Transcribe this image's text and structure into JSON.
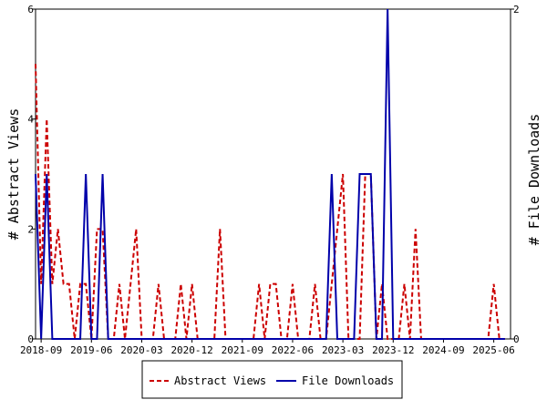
{
  "chart_data": {
    "type": "line",
    "left_axis_label": "# Abstract Views",
    "right_axis_label": "# File Downloads",
    "left_ylim": [
      0,
      6
    ],
    "right_ylim": [
      0,
      2
    ],
    "left_yticks": [
      "0",
      "2",
      "4",
      "6"
    ],
    "right_yticks": [
      "0",
      "2"
    ],
    "xlim": [
      "2018-08",
      "2025-09"
    ],
    "xticks": [
      "2018-09",
      "2019-06",
      "2020-03",
      "2020-12",
      "2021-09",
      "2022-06",
      "2023-03",
      "2023-12",
      "2024-09",
      "2025-06"
    ],
    "grid": false,
    "legend_position": "bottom",
    "colors": {
      "abstract_views": "#cc0000",
      "file_downloads": "#0000aa"
    },
    "series": [
      {
        "name": "Abstract Views",
        "axis": "left",
        "style": "dashed",
        "x": [
          "2018-08",
          "2018-09",
          "2018-10",
          "2018-11",
          "2018-12",
          "2019-01",
          "2019-02",
          "2019-03",
          "2019-04",
          "2019-05",
          "2019-06",
          "2019-07",
          "2019-08",
          "2019-09",
          "2019-10",
          "2019-11",
          "2019-12",
          "2020-01",
          "2020-02",
          "2020-03",
          "2020-04",
          "2020-05",
          "2020-06",
          "2020-07",
          "2020-08",
          "2020-09",
          "2020-10",
          "2020-11",
          "2020-12",
          "2021-01",
          "2021-02",
          "2021-03",
          "2021-04",
          "2021-05",
          "2021-06",
          "2021-07",
          "2021-08",
          "2021-09",
          "2021-10",
          "2021-11",
          "2021-12",
          "2022-01",
          "2022-02",
          "2022-03",
          "2022-04",
          "2022-05",
          "2022-06",
          "2022-07",
          "2022-08",
          "2022-09",
          "2022-10",
          "2022-11",
          "2022-12",
          "2023-01",
          "2023-02",
          "2023-03",
          "2023-04",
          "2023-05",
          "2023-06",
          "2023-07",
          "2023-08",
          "2023-09",
          "2023-10",
          "2023-11",
          "2023-12",
          "2024-01",
          "2024-02",
          "2024-03",
          "2024-04",
          "2024-05",
          "2024-06",
          "2024-07",
          "2024-08",
          "2024-09",
          "2024-10",
          "2024-11",
          "2024-12",
          "2025-01",
          "2025-02",
          "2025-03",
          "2025-04",
          "2025-05",
          "2025-06",
          "2025-07",
          "2025-08"
        ],
        "values": [
          5,
          1,
          4,
          1,
          2,
          1,
          1,
          0,
          1,
          1,
          0,
          2,
          2,
          0,
          0,
          1,
          0,
          1,
          2,
          0,
          0,
          0,
          1,
          0,
          0,
          0,
          1,
          0,
          1,
          0,
          0,
          0,
          0,
          2,
          0,
          0,
          0,
          0,
          0,
          0,
          1,
          0,
          1,
          1,
          0,
          0,
          1,
          0,
          0,
          0,
          1,
          0,
          0,
          1,
          2,
          3,
          0,
          0,
          0,
          3,
          3,
          0,
          1,
          0,
          0,
          0,
          1,
          0,
          2,
          0,
          0,
          0,
          0,
          0,
          0,
          0,
          0,
          0,
          0,
          0,
          0,
          0,
          1,
          0,
          0
        ]
      },
      {
        "name": "File Downloads",
        "axis": "right",
        "style": "solid",
        "x": [
          "2018-08",
          "2018-09",
          "2018-10",
          "2018-11",
          "2018-12",
          "2019-01",
          "2019-02",
          "2019-03",
          "2019-04",
          "2019-05",
          "2019-06",
          "2019-07",
          "2019-08",
          "2019-09",
          "2019-10",
          "2019-11",
          "2019-12",
          "2020-01",
          "2020-02",
          "2020-03",
          "2020-04",
          "2020-05",
          "2020-06",
          "2020-07",
          "2020-08",
          "2020-09",
          "2020-10",
          "2020-11",
          "2020-12",
          "2021-01",
          "2021-02",
          "2021-03",
          "2021-04",
          "2021-05",
          "2021-06",
          "2021-07",
          "2021-08",
          "2021-09",
          "2021-10",
          "2021-11",
          "2021-12",
          "2022-01",
          "2022-02",
          "2022-03",
          "2022-04",
          "2022-05",
          "2022-06",
          "2022-07",
          "2022-08",
          "2022-09",
          "2022-10",
          "2022-11",
          "2022-12",
          "2023-01",
          "2023-02",
          "2023-03",
          "2023-04",
          "2023-05",
          "2023-06",
          "2023-07",
          "2023-08",
          "2023-09",
          "2023-10",
          "2023-11",
          "2023-12",
          "2024-01",
          "2024-02",
          "2024-03",
          "2024-04",
          "2024-05",
          "2024-06",
          "2024-07",
          "2024-08",
          "2024-09",
          "2024-10",
          "2024-11",
          "2024-12",
          "2025-01",
          "2025-02",
          "2025-03",
          "2025-04",
          "2025-05",
          "2025-06",
          "2025-07",
          "2025-08"
        ],
        "values": [
          1,
          0,
          1,
          0,
          0,
          0,
          0,
          0,
          0,
          1,
          0,
          0,
          1,
          0,
          0,
          0,
          0,
          0,
          0,
          0,
          0,
          0,
          0,
          0,
          0,
          0,
          0,
          0,
          0,
          0,
          0,
          0,
          0,
          0,
          0,
          0,
          0,
          0,
          0,
          0,
          0,
          0,
          0,
          0,
          0,
          0,
          0,
          0,
          0,
          0,
          0,
          0,
          0,
          1,
          0,
          0,
          0,
          0,
          1,
          1,
          1,
          0,
          0,
          2,
          0,
          0,
          0,
          0,
          0,
          0,
          0,
          0,
          0,
          0,
          0,
          0,
          0,
          0,
          0,
          0,
          0,
          0,
          0,
          0,
          0
        ]
      }
    ]
  }
}
